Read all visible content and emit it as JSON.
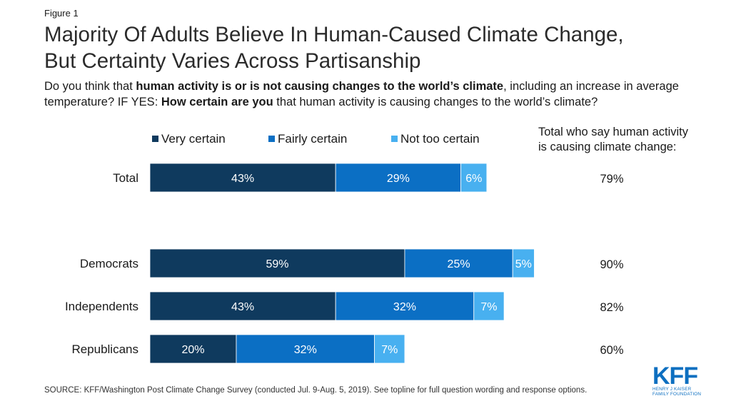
{
  "figure_label": "Figure 1",
  "title_lines": [
    "Majority Of Adults Believe In Human-Caused Climate Change,",
    "But Certainty Varies Across Partisanship"
  ],
  "question": {
    "p1": "Do you think that ",
    "b1": "human activity is or is not causing changes to the world’s climate",
    "p2": ", including an increase in average temperature? IF YES: ",
    "b2": "How certain are you",
    "p3": " that human activity is causing changes to the world’s climate?"
  },
  "source": "SOURCE: KFF/Washington Post Climate Change Survey (conducted Jul. 9-Aug. 5, 2019). See topline for full question wording and response options.",
  "logo": {
    "mark": "KFF",
    "line1": "HENRY J KAISER",
    "line2": "FAMILY FOUNDATION"
  },
  "colors": {
    "very_certain": "#0f3a5e",
    "fairly_certain": "#0b6fc4",
    "not_too_certain": "#48b0f0",
    "text": "#1a1a1a"
  },
  "chart_data": {
    "type": "bar",
    "orientation": "horizontal",
    "stacked": true,
    "categories": [
      "Total",
      "Democrats",
      "Independents",
      "Republicans"
    ],
    "series": [
      {
        "name": "Very certain",
        "values": [
          43,
          59,
          43,
          20
        ],
        "labels": [
          "43%",
          "59%",
          "43%",
          "20%"
        ]
      },
      {
        "name": "Fairly certain",
        "values": [
          29,
          25,
          32,
          32
        ],
        "labels": [
          "29%",
          "25%",
          "32%",
          "32%"
        ]
      },
      {
        "name": "Not too certain",
        "values": [
          6,
          5,
          7,
          7
        ],
        "labels": [
          "6%",
          "5%",
          "7%",
          "7%"
        ]
      }
    ],
    "totals_header": [
      "Total who say human activity",
      "is causing climate change:"
    ],
    "totals": [
      "79%",
      "90%",
      "82%",
      "60%"
    ],
    "legend_position": "top",
    "grid": false,
    "xlim": [
      0,
      100
    ]
  }
}
